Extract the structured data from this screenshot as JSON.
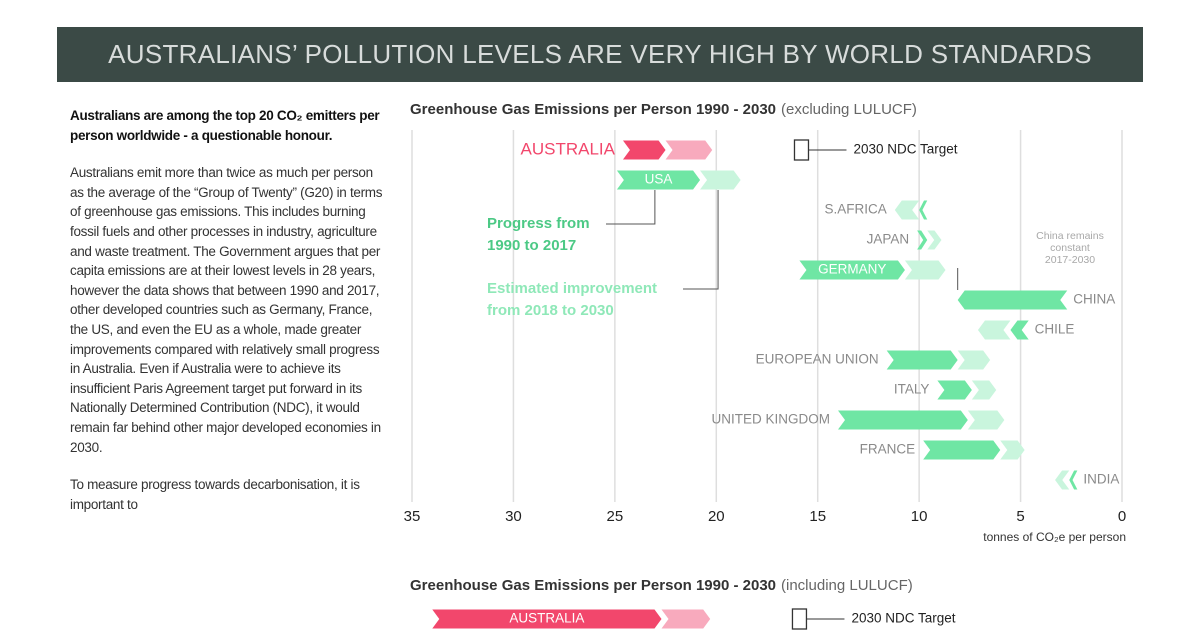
{
  "banner": "AUSTRALIANS’ POLLUTION LEVELS ARE VERY HIGH BY WORLD STANDARDS",
  "article": {
    "heading": "Australians are among the top 20 CO₂ emitters per person worldwide - a questionable honour.",
    "paragraphs": [
      "Australians emit more than twice as much per person as the average of the “Group of Twenty” (G20) in terms of greenhouse gas emissions.  This includes burning fossil fuels and other processes in industry, agriculture and waste treatment.  The Government argues that per capita emissions are at their lowest levels in 28 years, however the data shows that between 1990 and 2017, other developed countries such as Germany, France, the US, and even the EU as a whole, made greater improvements compared with relatively small progress in Australia. Even if Australia were to achieve its insufficient Paris Agreement target put forward in its Nationally Determined Contribution (NDC), it would remain far behind other major developed economies in 2030.",
      "To measure progress towards decarbonisation, it is important to"
    ]
  },
  "chart_data": [
    {
      "type": "arrow-range",
      "title": "Greenhouse Gas Emissions per Person 1990 - 2030",
      "title_note": "(excluding LULUCF)",
      "categories": [
        "AUSTRALIA",
        "USA",
        "S.AFRICA",
        "JAPAN",
        "GERMANY",
        "CHINA",
        "CHILE",
        "EUROPEAN UNION",
        "ITALY",
        "UNITED KINGDOM",
        "FRANCE",
        "INDIA"
      ],
      "start_1990": [
        24.6,
        24.9,
        9.6,
        10.1,
        15.9,
        2.7,
        4.6,
        11.6,
        9.1,
        14.0,
        9.8,
        2.2
      ],
      "end_2017": [
        22.5,
        20.8,
        10.0,
        9.6,
        10.7,
        8.1,
        5.5,
        8.1,
        7.4,
        7.6,
        6.0,
        2.6
      ],
      "end_2030": [
        20.2,
        18.8,
        11.2,
        8.9,
        8.7,
        8.1,
        7.1,
        6.5,
        6.2,
        5.8,
        4.8,
        3.3
      ],
      "label_side": [
        "left",
        "inside",
        "left",
        "left",
        "inside",
        "right",
        "right",
        "left",
        "left",
        "left",
        "left",
        "right"
      ],
      "highlight_index": 0,
      "colors": {
        "progress": "#6fe6a4",
        "estimate": "#c9f5dd",
        "highlight_progress": "#f2476c",
        "highlight_estimate": "#f8aabd"
      },
      "target": 15.8,
      "target_label": "2030 NDC Target",
      "annotations": [
        {
          "lines": [
            "Progress from",
            "1990 to 2017"
          ],
          "color": "#4cc985"
        },
        {
          "lines": [
            "Estimated improvement",
            "from 2018 to 2030"
          ],
          "color": "#8fe8b8"
        },
        {
          "lines": [
            "China remains",
            "constant",
            "2017-2030"
          ],
          "color": "#a8a8a8"
        }
      ],
      "xlim": [
        35,
        0
      ],
      "xticks": [
        35,
        30,
        25,
        20,
        15,
        10,
        5,
        0
      ],
      "xlabel": "tonnes of CO₂e per person",
      "grid": true
    },
    {
      "type": "arrow-range",
      "title": "Greenhouse Gas Emissions per Person 1990 - 2030",
      "title_note": "(including LULUCF)",
      "categories": [
        "AUSTRALIA"
      ],
      "start_1990": [
        34.0
      ],
      "end_2017": [
        22.7
      ],
      "end_2030": [
        20.3
      ],
      "label_side": [
        "inside"
      ],
      "highlight_index": 0,
      "colors": {
        "progress": "#6fe6a4",
        "estimate": "#c9f5dd",
        "highlight_progress": "#f2476c",
        "highlight_estimate": "#f8aabd"
      },
      "target": 15.9,
      "target_label": "2030 NDC Target",
      "xlim": [
        35,
        0
      ]
    }
  ]
}
